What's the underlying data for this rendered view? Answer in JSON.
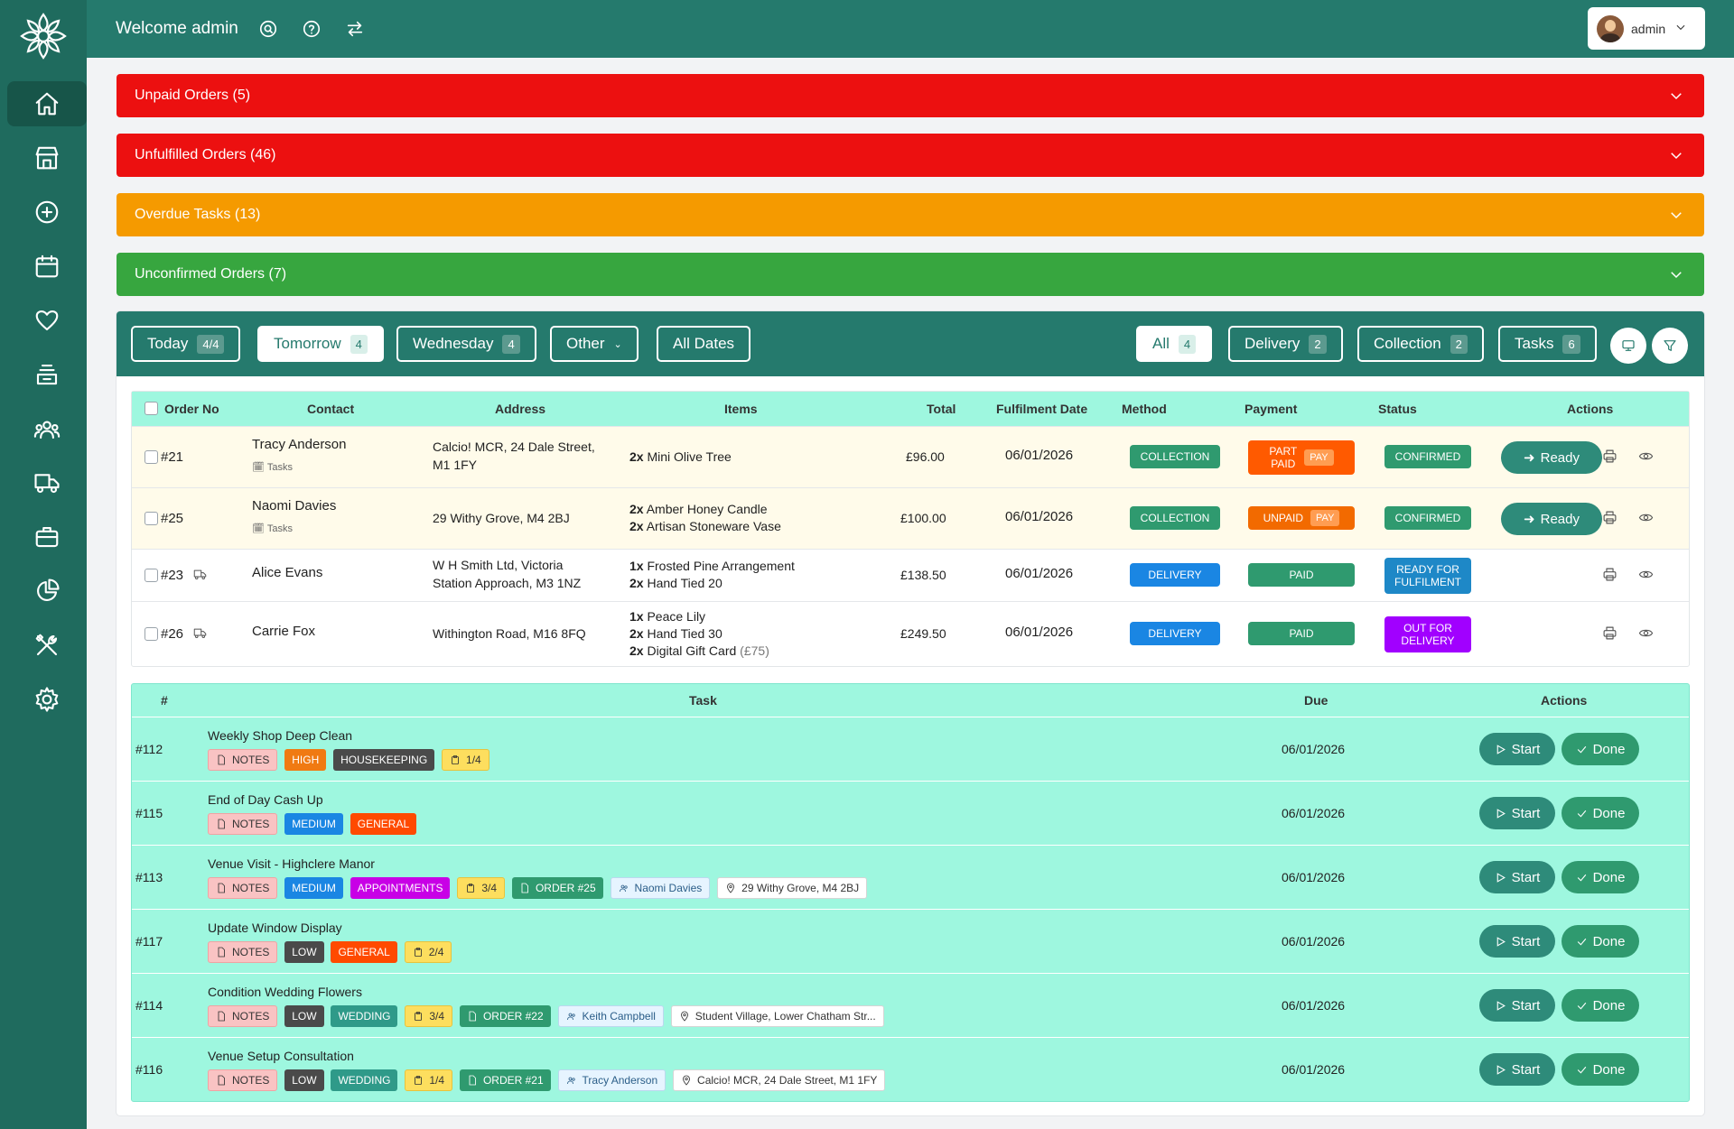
{
  "header": {
    "welcome": "Welcome admin",
    "user": "admin"
  },
  "alerts": [
    {
      "label": "Unpaid Orders (5)",
      "color": "#ec1010"
    },
    {
      "label": "Unfulfilled Orders (46)",
      "color": "#ec1010"
    },
    {
      "label": "Overdue Tasks (13)",
      "color": "#f59a00"
    },
    {
      "label": "Unconfirmed Orders (7)",
      "color": "#37a63f"
    }
  ],
  "filters": {
    "today": {
      "label": "Today",
      "count": "4/4"
    },
    "tomorrow": {
      "label": "Tomorrow",
      "count": "4"
    },
    "wednesday": {
      "label": "Wednesday",
      "count": "4"
    },
    "other": {
      "label": "Other"
    },
    "all_dates": {
      "label": "All Dates"
    },
    "all": {
      "label": "All",
      "count": "4"
    },
    "delivery": {
      "label": "Delivery",
      "count": "2"
    },
    "collection": {
      "label": "Collection",
      "count": "2"
    },
    "tasks": {
      "label": "Tasks",
      "count": "6"
    }
  },
  "orders": {
    "headers": {
      "order_no": "Order No",
      "contact": "Contact",
      "address": "Address",
      "items": "Items",
      "total": "Total",
      "date": "Fulfilment Date",
      "method": "Method",
      "payment": "Payment",
      "status": "Status",
      "actions": "Actions"
    },
    "rows": [
      {
        "no": "#21",
        "contact": "Tracy Anderson",
        "tasks": "Tasks",
        "addr1": "Calcio! MCR, 24 Dale Street,",
        "addr2": "M1 1FY",
        "item1q": "2x",
        "item1": "Mini Olive Tree",
        "total": "£96.00",
        "date": "06/01/2026",
        "method": "COLLECTION",
        "pay1": "PART",
        "pay2": "PAID",
        "paytag": "PAY",
        "status": "CONFIRMED",
        "ready": "Ready"
      },
      {
        "no": "#25",
        "contact": "Naomi Davies",
        "tasks": "Tasks",
        "addr1": "29 Withy Grove, M4 2BJ",
        "item1q": "2x",
        "item1": "Amber Honey Candle",
        "item2q": "2x",
        "item2": "Artisan Stoneware Vase",
        "total": "£100.00",
        "date": "06/01/2026",
        "method": "COLLECTION",
        "pay1": "UNPAID",
        "paytag": "PAY",
        "status": "CONFIRMED",
        "ready": "Ready"
      },
      {
        "no": "#23",
        "contact": "Alice Evans",
        "addr1": "W H Smith Ltd, Victoria",
        "addr2": "Station Approach, M3 1NZ",
        "item1q": "1x",
        "item1": "Frosted Pine Arrangement",
        "item2q": "2x",
        "item2": "Hand Tied 20",
        "total": "£138.50",
        "date": "06/01/2026",
        "method": "DELIVERY",
        "pay1": "PAID",
        "status1": "READY FOR",
        "status2": "FULFILMENT"
      },
      {
        "no": "#26",
        "contact": "Carrie Fox",
        "addr1": "Withington Road, M16 8FQ",
        "item1q": "1x",
        "item1": "Peace Lily",
        "item2q": "2x",
        "item2": "Hand Tied 30",
        "item3q": "2x",
        "item3": "Digital Gift Card",
        "item3note": "(£75)",
        "total": "£249.50",
        "date": "06/01/2026",
        "method": "DELIVERY",
        "pay1": "PAID",
        "status1": "OUT FOR",
        "status2": "DELIVERY"
      }
    ]
  },
  "tasks": {
    "headers": {
      "no": "#",
      "task": "Task",
      "due": "Due",
      "actions": "Actions"
    },
    "start": "Start",
    "done": "Done",
    "rows": [
      {
        "no": "#112",
        "title": "Weekly Shop Deep Clean",
        "due": "06/01/2026",
        "notes": "NOTES",
        "priority": "HIGH",
        "category": "HOUSEKEEPING",
        "progress": "1/4"
      },
      {
        "no": "#115",
        "title": "End of Day Cash Up",
        "due": "06/01/2026",
        "notes": "NOTES",
        "priority": "MEDIUM",
        "category": "GENERAL"
      },
      {
        "no": "#113",
        "title": "Venue Visit - Highclere Manor",
        "due": "06/01/2026",
        "notes": "NOTES",
        "priority": "MEDIUM",
        "category": "APPOINTMENTS",
        "progress": "3/4",
        "order": "ORDER #25",
        "contact": "Naomi Davies",
        "location": "29 Withy Grove, M4 2BJ"
      },
      {
        "no": "#117",
        "title": "Update Window Display",
        "due": "06/01/2026",
        "notes": "NOTES",
        "priority": "LOW",
        "category": "GENERAL",
        "progress": "2/4"
      },
      {
        "no": "#114",
        "title": "Condition Wedding Flowers",
        "due": "06/01/2026",
        "notes": "NOTES",
        "priority": "LOW",
        "category": "WEDDING",
        "progress": "3/4",
        "order": "ORDER #22",
        "contact": "Keith Campbell",
        "location": "Student Village, Lower Chatham Str..."
      },
      {
        "no": "#116",
        "title": "Venue Setup Consultation",
        "due": "06/01/2026",
        "notes": "NOTES",
        "priority": "LOW",
        "category": "WEDDING",
        "progress": "1/4",
        "order": "ORDER #21",
        "contact": "Tracy Anderson",
        "location": "Calcio! MCR, 24 Dale Street, M1 1FY"
      }
    ]
  }
}
